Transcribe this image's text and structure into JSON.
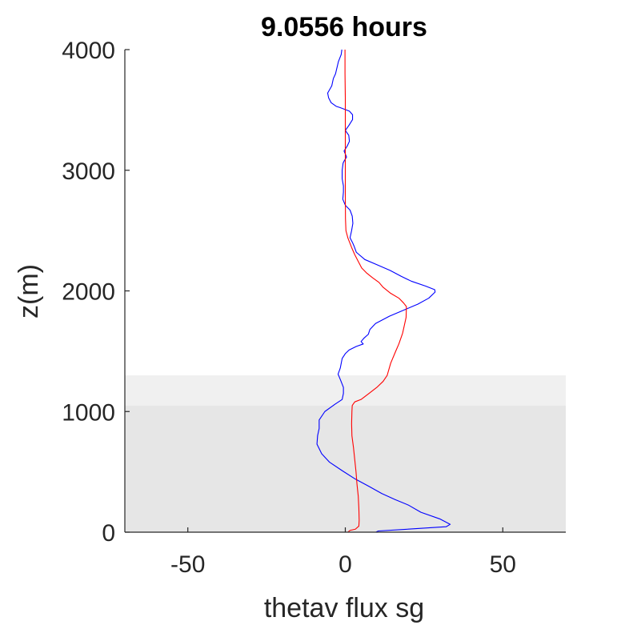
{
  "chart_data": {
    "type": "line",
    "title": "9.0556 hours",
    "xlabel": "thetav flux sg",
    "ylabel": "z(m)",
    "xlim": [
      -70,
      70
    ],
    "ylim": [
      0,
      4000
    ],
    "xticks": [
      -50,
      0,
      50
    ],
    "yticks": [
      0,
      1000,
      2000,
      3000,
      4000
    ],
    "x_tick_labels": [
      "-50",
      "0",
      "50"
    ],
    "y_tick_labels": [
      "0",
      "1000",
      "2000",
      "3000",
      "4000"
    ],
    "grid": false,
    "legend": "none",
    "shaded_bands": [
      {
        "y0": 0,
        "y1": 1050,
        "color": "#e6e6e6"
      },
      {
        "y0": 1050,
        "y1": 1300,
        "color": "#f0f0f0"
      }
    ],
    "series": [
      {
        "color": "#0000ff",
        "points": [
          [
            9.7,
            0
          ],
          [
            10.5,
            10
          ],
          [
            20,
            25
          ],
          [
            32,
            45
          ],
          [
            33.3,
            65
          ],
          [
            30,
            110
          ],
          [
            24,
            165
          ],
          [
            20,
            225
          ],
          [
            15.8,
            270
          ],
          [
            11.6,
            320
          ],
          [
            7.5,
            380
          ],
          [
            3.2,
            440
          ],
          [
            -1,
            510
          ],
          [
            -5,
            580
          ],
          [
            -7.5,
            650
          ],
          [
            -9,
            730
          ],
          [
            -8.8,
            800
          ],
          [
            -8.3,
            860
          ],
          [
            -8.3,
            930
          ],
          [
            -6.5,
            1000
          ],
          [
            -3.3,
            1060
          ],
          [
            -1,
            1100
          ],
          [
            -0.6,
            1150
          ],
          [
            -0.6,
            1200
          ],
          [
            -1.5,
            1260
          ],
          [
            -2.3,
            1310
          ],
          [
            -1.6,
            1360
          ],
          [
            -1,
            1440
          ],
          [
            0,
            1480
          ],
          [
            1.2,
            1510
          ],
          [
            3.5,
            1540
          ],
          [
            5.7,
            1560
          ],
          [
            5,
            1580
          ],
          [
            6,
            1610
          ],
          [
            7.3,
            1640
          ],
          [
            7.8,
            1680
          ],
          [
            9.6,
            1730
          ],
          [
            14,
            1790
          ],
          [
            18.5,
            1840
          ],
          [
            23,
            1890
          ],
          [
            26.5,
            1940
          ],
          [
            28.5,
            1990
          ],
          [
            28.4,
            2010
          ],
          [
            25.5,
            2040
          ],
          [
            21,
            2080
          ],
          [
            17.8,
            2120
          ],
          [
            14.2,
            2170
          ],
          [
            9.8,
            2220
          ],
          [
            6.2,
            2260
          ],
          [
            3.5,
            2320
          ],
          [
            2.8,
            2370
          ],
          [
            2.3,
            2400
          ],
          [
            1.5,
            2440
          ],
          [
            2,
            2500
          ],
          [
            2.4,
            2560
          ],
          [
            2.2,
            2620
          ],
          [
            1.5,
            2670
          ],
          [
            0,
            2710
          ],
          [
            -0.8,
            2760
          ],
          [
            -0.6,
            2820
          ],
          [
            -0.6,
            2870
          ],
          [
            -1,
            2930
          ],
          [
            -1,
            3000
          ],
          [
            -0.7,
            3060
          ],
          [
            -0.3,
            3080
          ],
          [
            0.4,
            3110
          ],
          [
            -0.4,
            3160
          ],
          [
            0.6,
            3200
          ],
          [
            1.3,
            3240
          ],
          [
            1.1,
            3290
          ],
          [
            0,
            3330
          ],
          [
            1.1,
            3370
          ],
          [
            2.3,
            3420
          ],
          [
            2.3,
            3460
          ],
          [
            1.3,
            3490
          ],
          [
            -1.7,
            3520
          ],
          [
            -2.9,
            3530
          ],
          [
            -4.5,
            3560
          ],
          [
            -5.3,
            3600
          ],
          [
            -5.6,
            3640
          ],
          [
            -4.3,
            3700
          ],
          [
            -3.8,
            3760
          ],
          [
            -3.1,
            3800
          ],
          [
            -2.2,
            3900
          ],
          [
            -1.3,
            3960
          ],
          [
            -1.1,
            4000
          ]
        ]
      },
      {
        "color": "#ff0000",
        "points": [
          [
            0.8,
            0
          ],
          [
            1.5,
            15
          ],
          [
            3.2,
            25
          ],
          [
            4.3,
            50
          ],
          [
            4.4,
            100
          ],
          [
            4.3,
            200
          ],
          [
            4.1,
            300
          ],
          [
            3.7,
            400
          ],
          [
            3.4,
            500
          ],
          [
            3.0,
            600
          ],
          [
            2.6,
            700
          ],
          [
            2.1,
            800
          ],
          [
            2.0,
            900
          ],
          [
            2.1,
            1000
          ],
          [
            2.2,
            1050
          ],
          [
            3,
            1080
          ],
          [
            5,
            1100
          ],
          [
            7.5,
            1150
          ],
          [
            10,
            1200
          ],
          [
            12,
            1250
          ],
          [
            13.3,
            1300
          ],
          [
            14.4,
            1400
          ],
          [
            16,
            1500
          ],
          [
            17,
            1560
          ],
          [
            18.2,
            1650
          ],
          [
            19.3,
            1780
          ],
          [
            19.4,
            1870
          ],
          [
            18.5,
            1900
          ],
          [
            17,
            1940
          ],
          [
            14.4,
            1980
          ],
          [
            12,
            2030
          ],
          [
            10.7,
            2070
          ],
          [
            8.6,
            2110
          ],
          [
            6.7,
            2150
          ],
          [
            5.2,
            2190
          ],
          [
            4.2,
            2240
          ],
          [
            3,
            2300
          ],
          [
            2,
            2360
          ],
          [
            0.8,
            2440
          ],
          [
            0.2,
            2500
          ],
          [
            0.05,
            2600
          ],
          [
            0,
            2800
          ],
          [
            0,
            3000
          ],
          [
            0,
            3200
          ],
          [
            0,
            3400
          ],
          [
            0,
            3600
          ],
          [
            -0.1,
            3800
          ],
          [
            -0.1,
            4000
          ]
        ]
      }
    ]
  }
}
